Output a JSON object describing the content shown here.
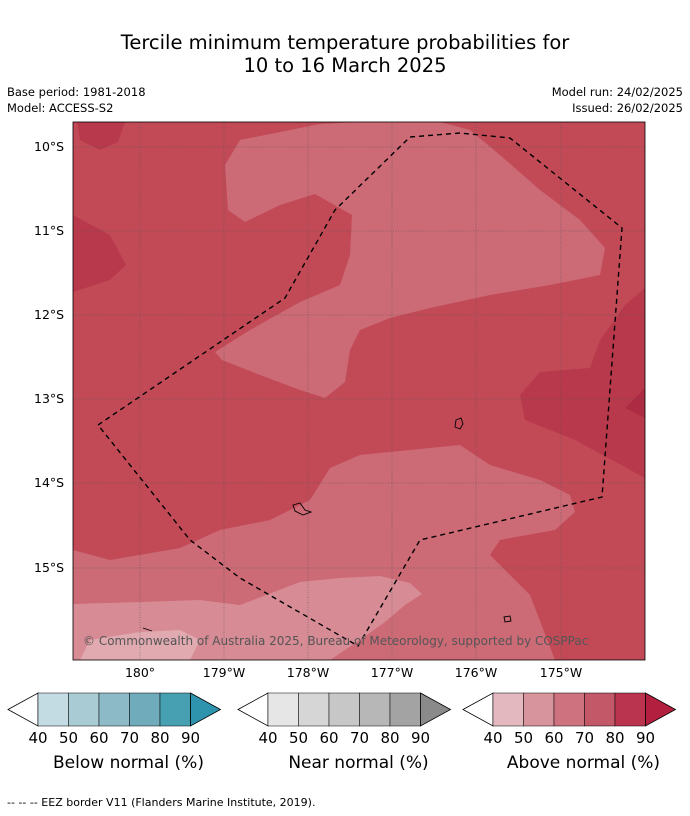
{
  "title_line1": "Tercile minimum temperature probabilities for",
  "title_line2": "10 to 16 March 2025",
  "base_period": "Base period: 1981-2018",
  "model": "Model: ACCESS-S2",
  "model_run": "Model run: 24/02/2025",
  "issued": "Issued: 26/02/2025",
  "copyright": "© Commonwealth of Australia 2025, Bureau of Meteorology, supported by COSPPac",
  "lat_labels": [
    "10°S",
    "11°S",
    "12°S",
    "13°S",
    "14°S",
    "15°S"
  ],
  "lon_labels": [
    "180°",
    "179°W",
    "178°W",
    "177°W",
    "176°W",
    "175°W"
  ],
  "colorbars": [
    {
      "label": "Below normal (%)",
      "ticks": [
        "40",
        "50",
        "60",
        "70",
        "80",
        "90"
      ],
      "colors": [
        "#c3dbe2",
        "#a9cbd3",
        "#8cbbc7",
        "#6fabbb",
        "#46a0b2",
        "#2e93ad"
      ]
    },
    {
      "label": "Near normal (%)",
      "ticks": [
        "40",
        "50",
        "60",
        "70",
        "80",
        "90"
      ],
      "colors": [
        "#e6e6e6",
        "#d6d6d6",
        "#c7c7c7",
        "#b7b7b7",
        "#a3a3a3",
        "#8a8a8a"
      ]
    },
    {
      "label": "Above normal (%)",
      "ticks": [
        "40",
        "50",
        "60",
        "70",
        "80",
        "90"
      ],
      "colors": [
        "#e3b9bf",
        "#d8949c",
        "#cd727e",
        "#c35968",
        "#ba3450",
        "#b21f3f"
      ]
    }
  ],
  "footer": "-- -- -- EEZ border V11 (Flanders Marine Institute, 2019)."
}
